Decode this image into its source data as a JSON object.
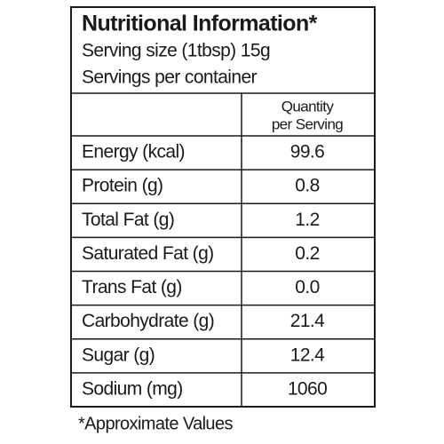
{
  "header": {
    "title": "Nutritional Information*",
    "serving_size": "Serving size (1tbsp) 15g",
    "servings": "Servings per container"
  },
  "table": {
    "column_header": [
      "Quantity",
      "per Serving"
    ],
    "rows": [
      [
        "Energy (kcal)",
        "99.6"
      ],
      [
        "Protein (g)",
        "0.8"
      ],
      [
        "Total Fat (g)",
        "1.2"
      ],
      [
        "Saturated Fat (g)",
        "0.2"
      ],
      [
        "Trans Fat (g)",
        "0.0"
      ],
      [
        "Carbohydrate (g)",
        "21.4"
      ],
      [
        "Sugar (g)",
        "12.4"
      ],
      [
        "Sodium (mg)",
        "1060"
      ]
    ]
  },
  "footnote": "*Approximate Values"
}
